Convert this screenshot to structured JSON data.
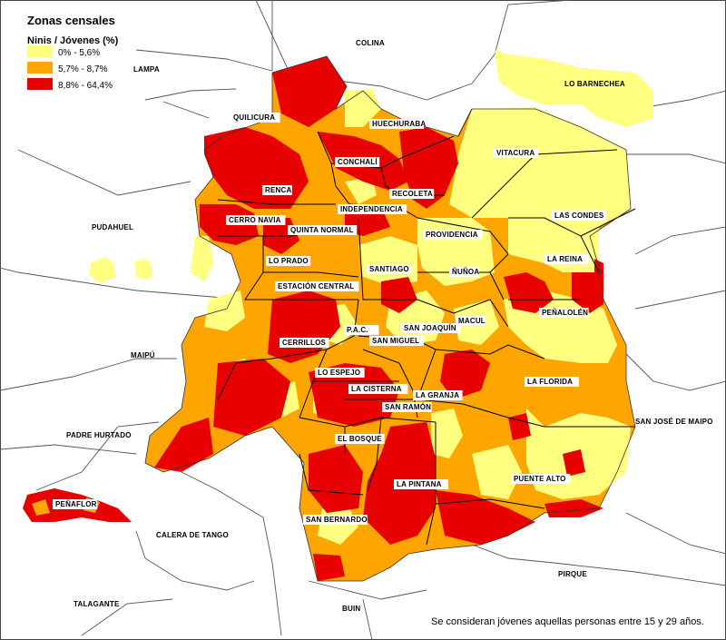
{
  "legend": {
    "title": "Zonas censales",
    "subtitle": "Ninis / Jóvenes (%)",
    "items": [
      {
        "label": "0% - 5,6%",
        "color": "#ffff80"
      },
      {
        "label": "5,7% - 8,7%",
        "color": "#ffa500"
      },
      {
        "label": "8,8% - 64,4%",
        "color": "#e80000"
      }
    ]
  },
  "colors": {
    "low": "#ffff80",
    "mid": "#ffa500",
    "high": "#e80000",
    "border": "#000000",
    "outer_border": "#555555"
  },
  "comunas_inner": [
    "QUILICURA",
    "HUECHURABA",
    "CONCHALÍ",
    "RENCA",
    "RECOLETA",
    "INDEPENDENCIA",
    "CERRO NAVIA",
    "QUINTA NORMAL",
    "LO PRADO",
    "SANTIAGO",
    "PROVIDENCIA",
    "ÑUÑOA",
    "LA REINA",
    "ESTACIÓN CENTRAL",
    "P.A.C.",
    "SAN JOAQUÍN",
    "MACUL",
    "PEÑALOLÉN",
    "CERRILLOS",
    "SAN MIGUEL",
    "LO ESPEJO",
    "LA CISTERNA",
    "LA GRANJA",
    "SAN RAMÓN",
    "LA FLORIDA",
    "EL BOSQUE",
    "PUENTE ALTO",
    "LA PINTANA",
    "SAN BERNARDO",
    "VITACURA",
    "LAS CONDES",
    "PEÑAFLOR"
  ],
  "comunas_outer": [
    "COLINA",
    "LAMPA",
    "LO BARNECHEA",
    "PUDAHUEL",
    "MAIPÚ",
    "PADRE HURTADO",
    "SAN JOSÉ DE MAIPO",
    "CALERA DE TANGO",
    "PIRQUE",
    "TALAGANTE",
    "BUIN"
  ],
  "footnote": "Se consideran jóvenes aquellas personas entre 15 y 29 años."
}
